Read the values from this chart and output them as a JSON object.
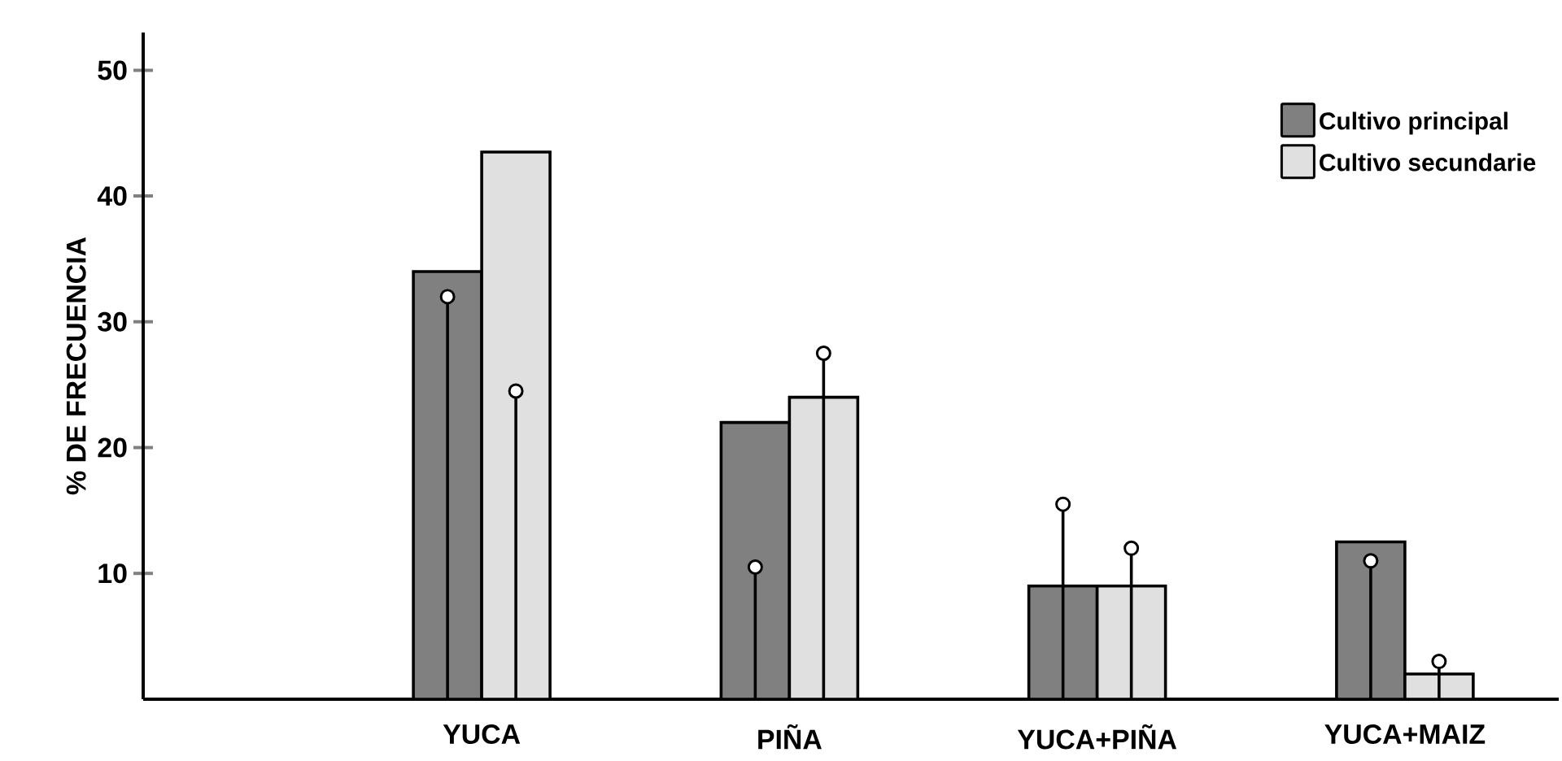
{
  "chart_data": {
    "type": "bar",
    "ylabel": "% DE FRECUENCIA",
    "categories": [
      "YUCA",
      "PIÑA",
      "YUCA+PIÑA",
      "YUCA+MAIZ"
    ],
    "ylim": [
      0,
      53
    ],
    "yticks": [
      10,
      20,
      30,
      40,
      50
    ],
    "legend": "top right",
    "series": [
      {
        "name": "Cultivo principal",
        "color": "#808080",
        "values": [
          34,
          22,
          9,
          12.5
        ]
      },
      {
        "name": "Cultivo secundarie",
        "color": "#e0e0e0",
        "values": [
          43.5,
          24,
          9,
          2
        ]
      },
      {
        "type": "lollipop",
        "color": "#000000",
        "marker": "circle",
        "values": [
          32,
          10.5,
          15.5,
          11
        ]
      },
      {
        "type": "lollipop",
        "color": "#000000",
        "marker": "circle",
        "values": [
          24.5,
          27.5,
          12,
          3
        ]
      }
    ]
  }
}
